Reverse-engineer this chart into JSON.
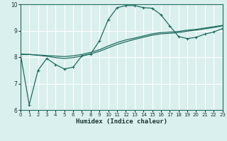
{
  "xlabel": "Humidex (Indice chaleur)",
  "bg_color": "#daf0ee",
  "grid_color": "#ffffff",
  "line_color": "#1f6b60",
  "xlim": [
    0,
    23
  ],
  "ylim": [
    6,
    10
  ],
  "xticks": [
    0,
    1,
    2,
    3,
    4,
    5,
    6,
    7,
    8,
    9,
    10,
    11,
    12,
    13,
    14,
    15,
    16,
    17,
    18,
    19,
    20,
    21,
    22,
    23
  ],
  "yticks": [
    6,
    7,
    8,
    9,
    10
  ],
  "curve1_x": [
    0,
    1,
    2,
    3,
    4,
    5,
    6,
    7,
    8,
    9,
    10,
    11,
    12,
    13,
    14,
    15,
    16,
    17,
    18,
    19,
    20,
    21,
    22,
    23
  ],
  "curve1_y": [
    8.12,
    6.2,
    7.5,
    7.95,
    7.72,
    7.55,
    7.62,
    8.05,
    8.12,
    8.62,
    9.42,
    9.87,
    9.95,
    9.95,
    9.87,
    9.85,
    9.6,
    9.18,
    8.78,
    8.7,
    8.75,
    8.87,
    8.95,
    9.08
  ],
  "curve2_x": [
    0,
    1,
    2,
    3,
    4,
    5,
    6,
    7,
    8,
    9,
    10,
    11,
    12,
    13,
    14,
    15,
    16,
    17,
    18,
    19,
    20,
    21,
    22,
    23
  ],
  "curve2_y": [
    8.1,
    8.1,
    8.08,
    8.06,
    8.04,
    8.02,
    8.05,
    8.1,
    8.18,
    8.28,
    8.42,
    8.55,
    8.65,
    8.72,
    8.8,
    8.88,
    8.93,
    8.95,
    8.97,
    9.02,
    9.05,
    9.1,
    9.15,
    9.2
  ],
  "curve3_x": [
    0,
    1,
    2,
    3,
    4,
    5,
    6,
    7,
    8,
    9,
    10,
    11,
    12,
    13,
    14,
    15,
    16,
    17,
    18,
    19,
    20,
    21,
    22,
    23
  ],
  "curve3_y": [
    8.12,
    8.1,
    8.07,
    8.03,
    7.98,
    7.95,
    7.98,
    8.04,
    8.12,
    8.22,
    8.35,
    8.48,
    8.58,
    8.67,
    8.75,
    8.83,
    8.88,
    8.9,
    8.93,
    8.98,
    9.02,
    9.07,
    9.12,
    9.18
  ]
}
